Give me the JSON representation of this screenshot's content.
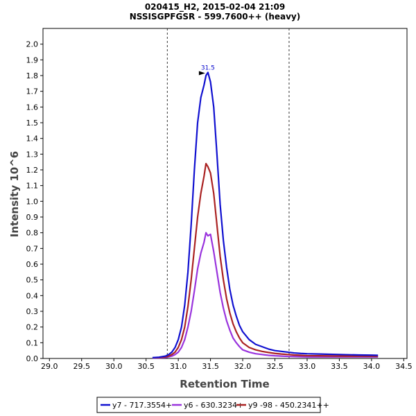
{
  "chart_data": {
    "type": "line",
    "title": "020415_H2, 2015-02-04 21:09",
    "subtitle": "NSSISGPFGSR - 599.7600++ (heavy)",
    "xlabel": "Retention Time",
    "ylabel": "Intensity 10^6",
    "xlim": [
      28.9,
      34.55
    ],
    "ylim": [
      0,
      2.1
    ],
    "xticks": [
      "29.0",
      "29.5",
      "30.0",
      "30.5",
      "31.0",
      "31.5",
      "32.0",
      "32.5",
      "33.0",
      "33.5",
      "34.0",
      "34.5"
    ],
    "yticks": [
      "0.0",
      "0.1",
      "0.2",
      "0.3",
      "0.4",
      "0.5",
      "0.6",
      "0.7",
      "0.8",
      "0.9",
      "1.0",
      "1.1",
      "1.2",
      "1.3",
      "1.4",
      "1.5",
      "1.6",
      "1.7",
      "1.8",
      "1.9",
      "2.0"
    ],
    "grid": false,
    "legend_position": "bottom",
    "boundary_lines": [
      30.83,
      32.72
    ],
    "peak_annotation": {
      "x": 31.46,
      "y": 1.82,
      "label": "31.5",
      "color": "#0000cc"
    },
    "series": [
      {
        "name": "y7 - 717.3554+",
        "color": "#1010d0",
        "x": [
          30.6,
          30.7,
          30.8,
          30.85,
          30.9,
          30.95,
          31.0,
          31.05,
          31.1,
          31.15,
          31.2,
          31.25,
          31.3,
          31.35,
          31.4,
          31.43,
          31.46,
          31.5,
          31.55,
          31.6,
          31.65,
          31.7,
          31.75,
          31.8,
          31.85,
          31.9,
          31.95,
          32.0,
          32.1,
          32.2,
          32.3,
          32.4,
          32.5,
          32.6,
          32.7,
          32.8,
          32.9,
          33.0,
          33.2,
          33.4,
          33.6,
          33.8,
          34.0,
          34.1
        ],
        "y": [
          0.005,
          0.008,
          0.015,
          0.025,
          0.04,
          0.07,
          0.12,
          0.2,
          0.34,
          0.55,
          0.85,
          1.2,
          1.5,
          1.66,
          1.74,
          1.8,
          1.82,
          1.76,
          1.6,
          1.3,
          0.98,
          0.75,
          0.58,
          0.44,
          0.34,
          0.27,
          0.21,
          0.17,
          0.12,
          0.09,
          0.075,
          0.06,
          0.05,
          0.045,
          0.04,
          0.035,
          0.032,
          0.03,
          0.028,
          0.026,
          0.024,
          0.022,
          0.021,
          0.02
        ]
      },
      {
        "name": "y6 - 630.3234+",
        "color": "#9933dd",
        "x": [
          30.6,
          30.7,
          30.8,
          30.85,
          30.9,
          30.95,
          31.0,
          31.05,
          31.1,
          31.15,
          31.2,
          31.25,
          31.3,
          31.35,
          31.4,
          31.43,
          31.46,
          31.5,
          31.55,
          31.6,
          31.65,
          31.7,
          31.75,
          31.8,
          31.85,
          31.9,
          31.95,
          32.0,
          32.1,
          32.2,
          32.3,
          32.4,
          32.5,
          32.6,
          32.7,
          32.8,
          32.9,
          33.0,
          33.2,
          33.4,
          33.6,
          33.8,
          34.0,
          34.1
        ],
        "y": [
          0.003,
          0.004,
          0.006,
          0.01,
          0.015,
          0.025,
          0.04,
          0.07,
          0.12,
          0.2,
          0.3,
          0.43,
          0.57,
          0.67,
          0.74,
          0.8,
          0.78,
          0.79,
          0.68,
          0.55,
          0.42,
          0.32,
          0.24,
          0.18,
          0.13,
          0.1,
          0.075,
          0.055,
          0.04,
          0.03,
          0.025,
          0.02,
          0.017,
          0.015,
          0.013,
          0.012,
          0.011,
          0.01,
          0.01,
          0.01,
          0.01,
          0.01,
          0.01,
          0.01
        ]
      },
      {
        "name": "y9 -98 - 450.2341++",
        "color": "#aa2222",
        "x": [
          30.6,
          30.7,
          30.8,
          30.85,
          30.9,
          30.95,
          31.0,
          31.05,
          31.1,
          31.15,
          31.2,
          31.25,
          31.3,
          31.35,
          31.4,
          31.43,
          31.46,
          31.5,
          31.55,
          31.6,
          31.65,
          31.7,
          31.75,
          31.8,
          31.85,
          31.9,
          31.95,
          32.0,
          32.1,
          32.2,
          32.3,
          32.4,
          32.5,
          32.6,
          32.7,
          32.8,
          32.9,
          33.0,
          33.2,
          33.4,
          33.6,
          33.8,
          34.0,
          34.1
        ],
        "y": [
          0.004,
          0.006,
          0.01,
          0.015,
          0.025,
          0.04,
          0.07,
          0.12,
          0.2,
          0.33,
          0.5,
          0.7,
          0.9,
          1.05,
          1.16,
          1.24,
          1.22,
          1.18,
          1.05,
          0.85,
          0.65,
          0.5,
          0.38,
          0.29,
          0.22,
          0.17,
          0.13,
          0.1,
          0.07,
          0.055,
          0.045,
          0.038,
          0.032,
          0.028,
          0.025,
          0.022,
          0.02,
          0.018,
          0.017,
          0.016,
          0.015,
          0.015,
          0.014,
          0.014
        ]
      }
    ]
  }
}
